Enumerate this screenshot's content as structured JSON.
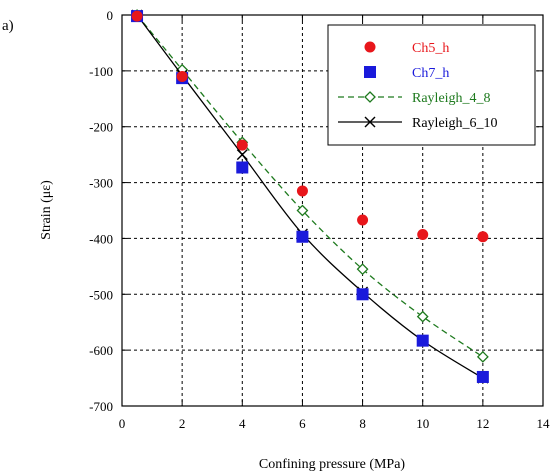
{
  "panel_label": "a)",
  "chart_data": {
    "type": "line",
    "xlabel": "Confining pressure (MPa)",
    "ylabel": "Strain (με)",
    "xlim": [
      0,
      14
    ],
    "ylim": [
      -700,
      0
    ],
    "x_ticks": [
      0,
      2,
      4,
      6,
      8,
      10,
      12,
      14
    ],
    "y_ticks": [
      0,
      -100,
      -200,
      -300,
      -400,
      -500,
      -600,
      -700
    ],
    "grid": true,
    "legend_position": "top-right",
    "series": [
      {
        "name": "Ch5_h",
        "marker": "circle",
        "line": "none",
        "color": "#e8161b",
        "x": [
          0.5,
          2,
          4,
          6,
          8,
          10,
          12
        ],
        "y": [
          -2,
          -110,
          -233,
          -315,
          -367,
          -393,
          -397
        ]
      },
      {
        "name": "Ch7_h",
        "marker": "square",
        "line": "none",
        "color": "#1a1adb",
        "x": [
          0.5,
          2,
          4,
          6,
          8,
          10,
          12
        ],
        "y": [
          -2,
          -113,
          -273,
          -397,
          -500,
          -583,
          -648
        ]
      },
      {
        "name": "Rayleigh_4_8",
        "marker": "diamond-open",
        "line": "dashed",
        "color": "#1e7a1e",
        "x": [
          0.5,
          2,
          4,
          6,
          8,
          10,
          12
        ],
        "y": [
          0,
          -98,
          -228,
          -350,
          -455,
          -540,
          -612
        ]
      },
      {
        "name": "Rayleigh_6_10",
        "marker": "x",
        "line": "solid",
        "color": "#000000",
        "x": [
          0.5,
          2,
          4,
          6,
          8,
          10,
          12
        ],
        "y": [
          0,
          -108,
          -250,
          -392,
          -496,
          -583,
          -650
        ]
      }
    ]
  }
}
